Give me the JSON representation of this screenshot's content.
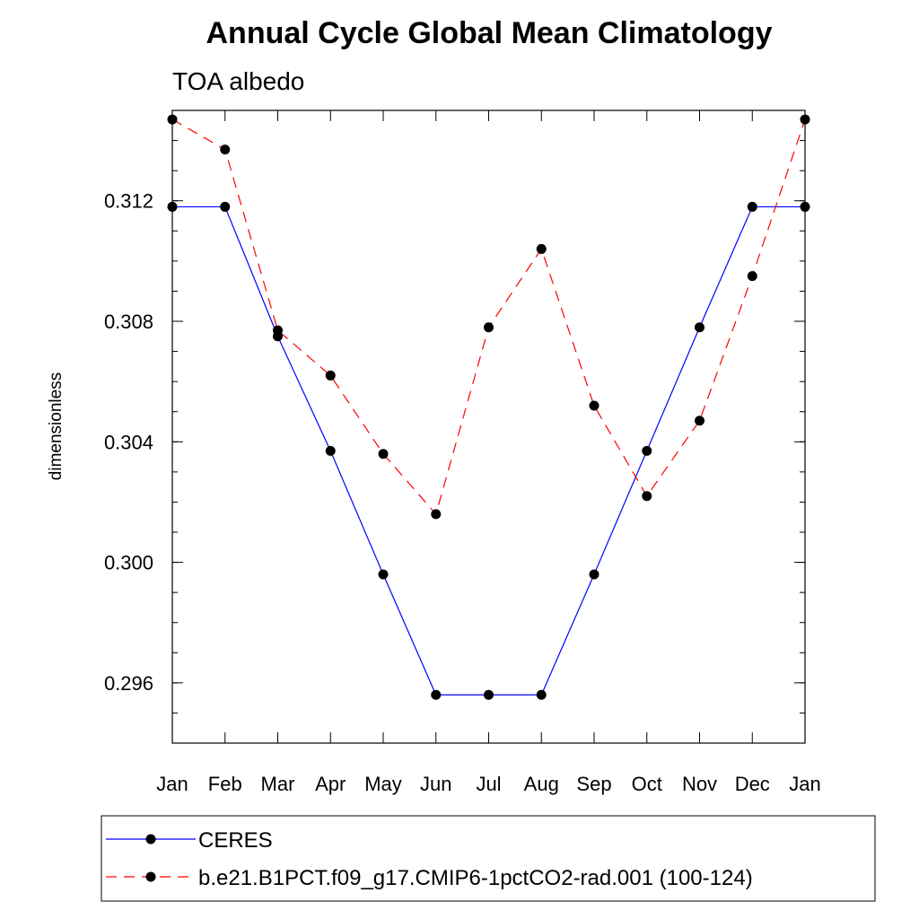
{
  "chart_data": {
    "type": "line",
    "title": "Annual Cycle Global Mean Climatology",
    "subtitle": "TOA albedo",
    "xlabel": "",
    "ylabel": "dimensionless",
    "categories": [
      "Jan",
      "Feb",
      "Mar",
      "Apr",
      "May",
      "Jun",
      "Jul",
      "Aug",
      "Sep",
      "Oct",
      "Nov",
      "Dec",
      "Jan"
    ],
    "ylim": [
      0.294,
      0.315
    ],
    "yticks": [
      0.296,
      0.3,
      0.304,
      0.308,
      0.312
    ],
    "ytick_labels": [
      "0.296",
      "0.300",
      "0.304",
      "0.308",
      "0.312"
    ],
    "grid": false,
    "legend_position": "bottom",
    "series": [
      {
        "name": "CERES",
        "color": "#0000ff",
        "style": "solid",
        "marker": "circle",
        "values": [
          0.3118,
          0.3118,
          0.3075,
          0.3037,
          0.2996,
          0.2956,
          0.2956,
          0.2956,
          0.2996,
          0.3037,
          0.3078,
          0.3118,
          0.3118
        ]
      },
      {
        "name": "b.e21.B1PCT.f09_g17.CMIP6-1pctCO2-rad.001 (100-124)",
        "color": "#ff0000",
        "style": "dashed",
        "marker": "circle",
        "values": [
          0.3147,
          0.3137,
          0.3077,
          0.3062,
          0.3036,
          0.3016,
          0.3078,
          0.3104,
          0.3052,
          0.3022,
          0.3047,
          0.3095,
          0.3147
        ]
      }
    ]
  }
}
